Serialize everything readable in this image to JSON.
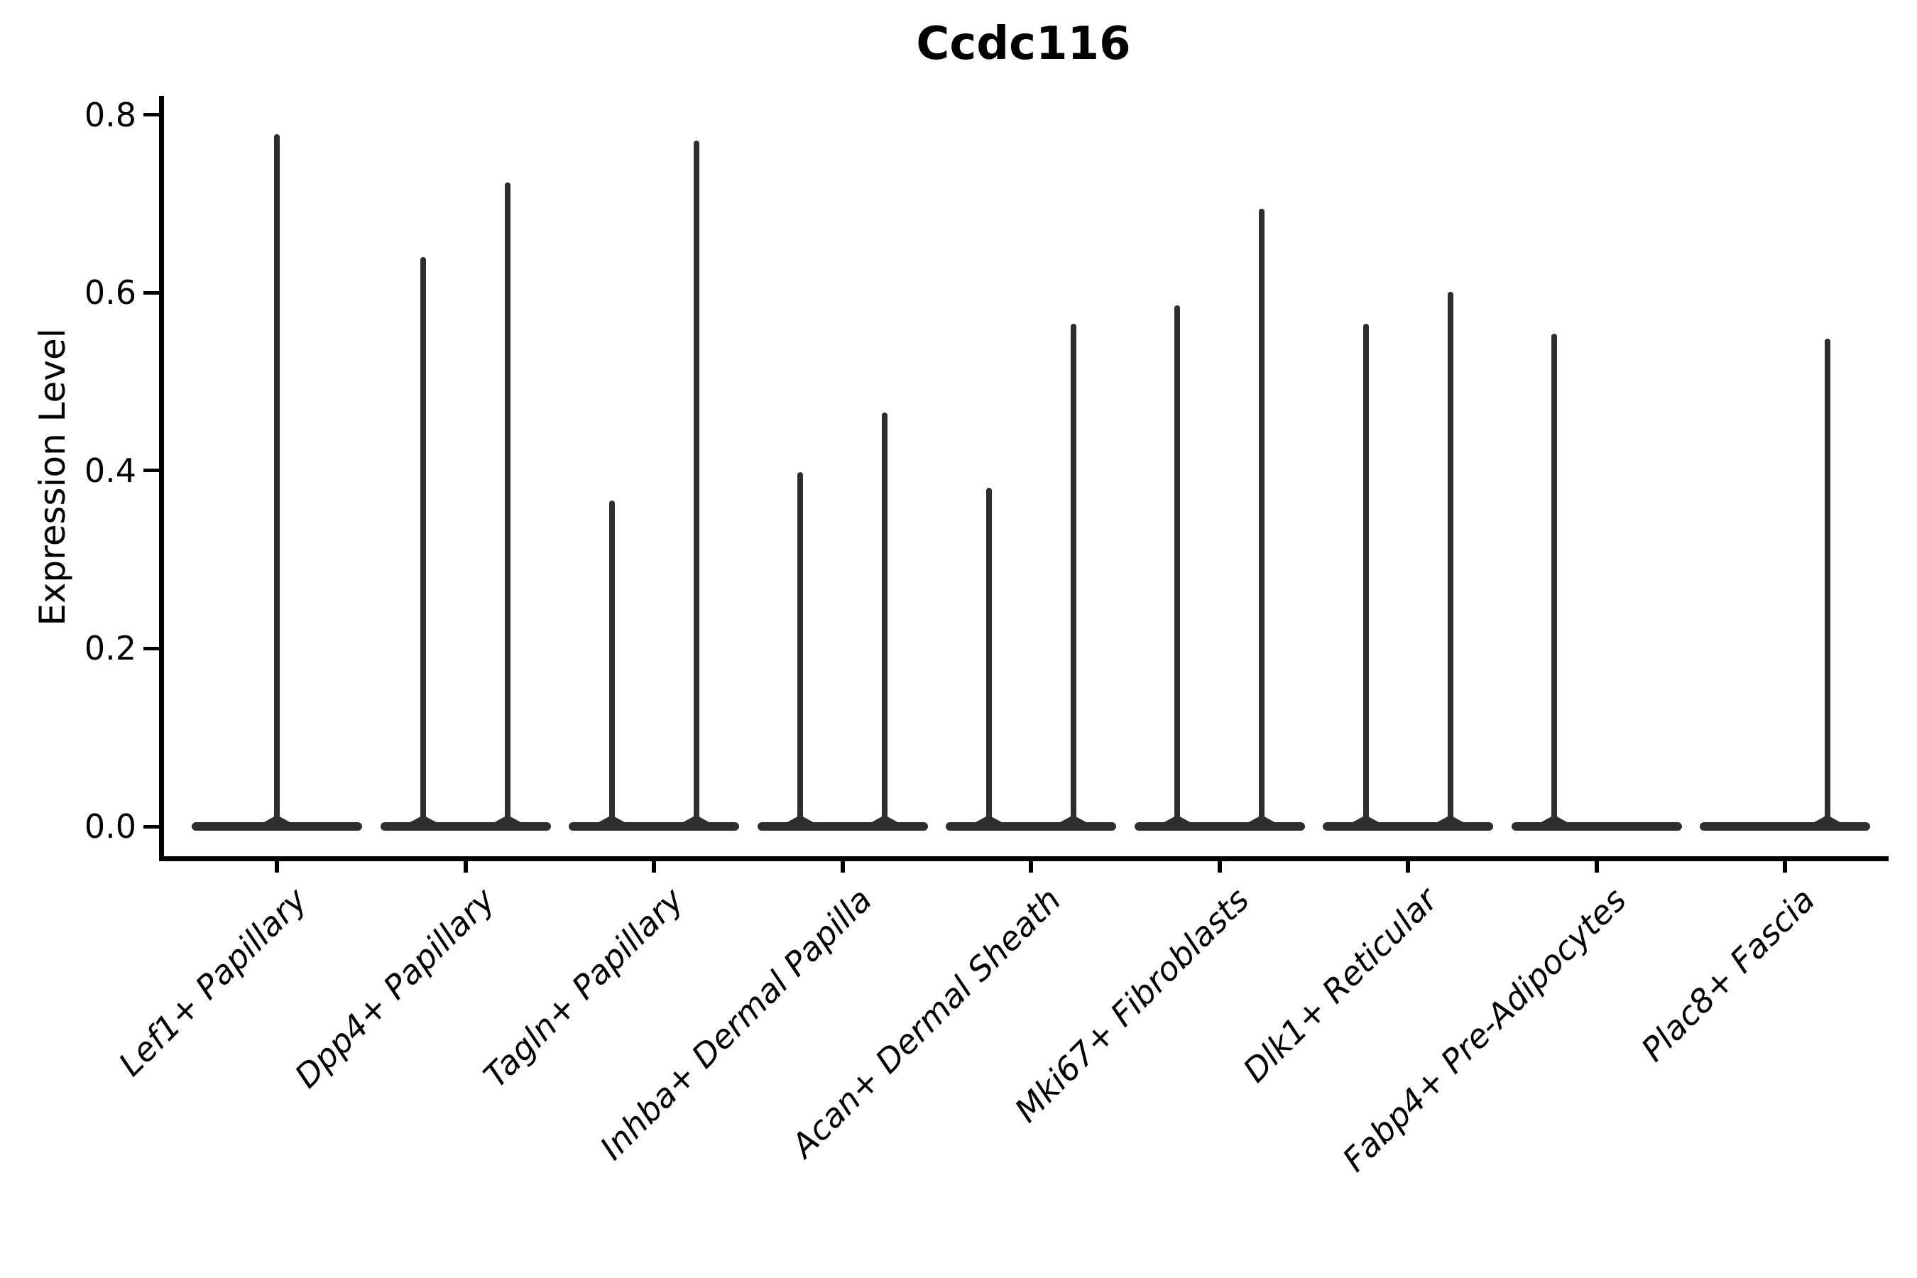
{
  "colors": {
    "violin": "#2e2e2e",
    "axis": "#000000",
    "text": "#000000",
    "background": "#ffffff"
  },
  "chart_data": {
    "type": "violin",
    "title": "Ccdc116",
    "ylabel": "Expression Level",
    "xlabel": "",
    "grid": false,
    "legend_position": "none",
    "ylim": [
      0,
      0.82
    ],
    "yticks": [
      0,
      0.2,
      0.4,
      0.6,
      0.8
    ],
    "ytick_labels": [
      "0.0",
      "0.2",
      "0.4",
      "0.6",
      "0.8"
    ],
    "categories": [
      "Lef1+ Papillary",
      "Dpp4+ Papillary",
      "Tagln+ Papillary",
      "Inhba+ Dermal Papilla",
      "Acan+ Dermal Sheath",
      "Mki67+ Fibroblasts",
      "Dlk1+ Reticular",
      "Fabp4+ Pre-Adipocytes",
      "Plac8+ Fascia"
    ],
    "description": "Needle-thin violin distributions; bulk of cells at expression 0 (flat wide base), with thin density tails reaching the maximum expression value. Most categories show two tails (two dodged violins per category), Lef1+ Papillary shows one centered tail, Fabp4+ Pre-Adipocytes only a left tail, Plac8+ Fascia only a right tail.",
    "violins": [
      {
        "category": "Lef1+ Papillary",
        "baseline_value": 0,
        "needles": [
          {
            "position": "center",
            "max_value": 0.778
          }
        ]
      },
      {
        "category": "Dpp4+ Papillary",
        "baseline_value": 0,
        "needles": [
          {
            "position": "left",
            "max_value": 0.64
          },
          {
            "position": "right",
            "max_value": 0.724
          }
        ]
      },
      {
        "category": "Tagln+ Papillary",
        "baseline_value": 0,
        "needles": [
          {
            "position": "left",
            "max_value": 0.366
          },
          {
            "position": "right",
            "max_value": 0.771
          }
        ]
      },
      {
        "category": "Inhba+ Dermal Papilla",
        "baseline_value": 0,
        "needles": [
          {
            "position": "left",
            "max_value": 0.398
          },
          {
            "position": "right",
            "max_value": 0.465
          }
        ]
      },
      {
        "category": "Acan+ Dermal Sheath",
        "baseline_value": 0,
        "needles": [
          {
            "position": "left",
            "max_value": 0.381
          },
          {
            "position": "right",
            "max_value": 0.565
          }
        ]
      },
      {
        "category": "Mki67+ Fibroblasts",
        "baseline_value": 0,
        "needles": [
          {
            "position": "left",
            "max_value": 0.586
          },
          {
            "position": "right",
            "max_value": 0.694
          }
        ]
      },
      {
        "category": "Dlk1+ Reticular",
        "baseline_value": 0,
        "needles": [
          {
            "position": "left",
            "max_value": 0.565
          },
          {
            "position": "right",
            "max_value": 0.601
          }
        ]
      },
      {
        "category": "Fabp4+ Pre-Adipocytes",
        "baseline_value": 0,
        "needles": [
          {
            "position": "left",
            "max_value": 0.554
          }
        ]
      },
      {
        "category": "Plac8+ Fascia",
        "baseline_value": 0,
        "needles": [
          {
            "position": "right",
            "max_value": 0.548
          }
        ]
      }
    ]
  }
}
